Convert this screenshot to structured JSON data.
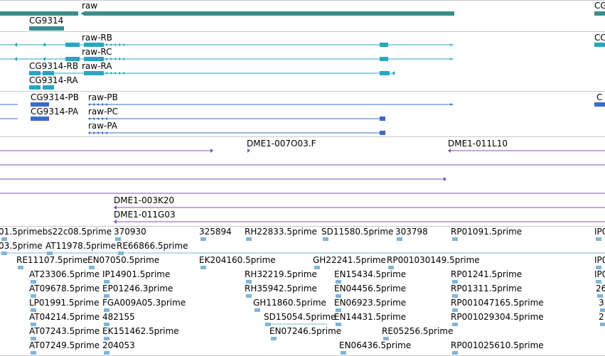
{
  "colors": {
    "gene": "#3a8d8d",
    "mrna": "#27a6c3",
    "cds": "#3b6bc9",
    "clone": "#7b55b5",
    "est": "#7fb5d8",
    "separator": "#c8c8c8"
  },
  "tracks": {
    "genes": {
      "labels": [
        "raw",
        "CG9314",
        "CG"
      ]
    },
    "transcripts": {
      "labels": [
        "raw-RB",
        "raw-RC",
        "CG9314-RB",
        "raw-RA",
        "CG9314-RA",
        "CC"
      ]
    },
    "proteins": {
      "labels": [
        "CG9314-PB",
        "raw-PB",
        "CG9314-PA",
        "raw-PC",
        "raw-PA",
        "C"
      ]
    },
    "clones": {
      "labels": [
        "DME1-007O03.F",
        "DME1-011L10",
        "DME1-003K20",
        "DME1-011G03"
      ]
    },
    "ests": {
      "labels": [
        "01.5primebs22c08.5prime",
        "370930",
        "325894",
        "RH22833.5prime",
        "SD11580.5prime",
        "303798",
        "RP01091.5prime",
        "IP0",
        "03.5prime",
        "AT11978.5prime",
        "RE66866.5prime",
        "RE11107.5prime",
        "EN07050.5prime",
        "EK204160.5prime",
        "GH22241.5prime",
        "RP001030149.5prime",
        "IP0",
        "AT23306.5prime",
        "IP14901.5prime",
        "RH32219.5prime",
        "EN15434.5prime",
        "RP01241.5prime",
        "IP0",
        "AT09678.5prime",
        "EP01246.3prime",
        "RH35942.5prime",
        "EN04456.5prime",
        "RP01311.5prime",
        "26",
        "LP01991.5prime",
        "FGA009A05.3prime",
        "GH11860.5prime",
        "EN06923.5prime",
        "RP001047165.5prime",
        "3",
        "AT04214.5prime",
        "482155",
        "SD15054.5prime",
        "EN14431.5prime",
        "RP001029304.5prime",
        "2",
        "AT07243.5prime",
        "EK151462.5prime",
        "EN07246.5prime",
        "RE05256.5prime",
        "AT07249.5prime",
        "204053",
        "EN06436.5prime",
        "RP001025610.5prime"
      ]
    }
  }
}
